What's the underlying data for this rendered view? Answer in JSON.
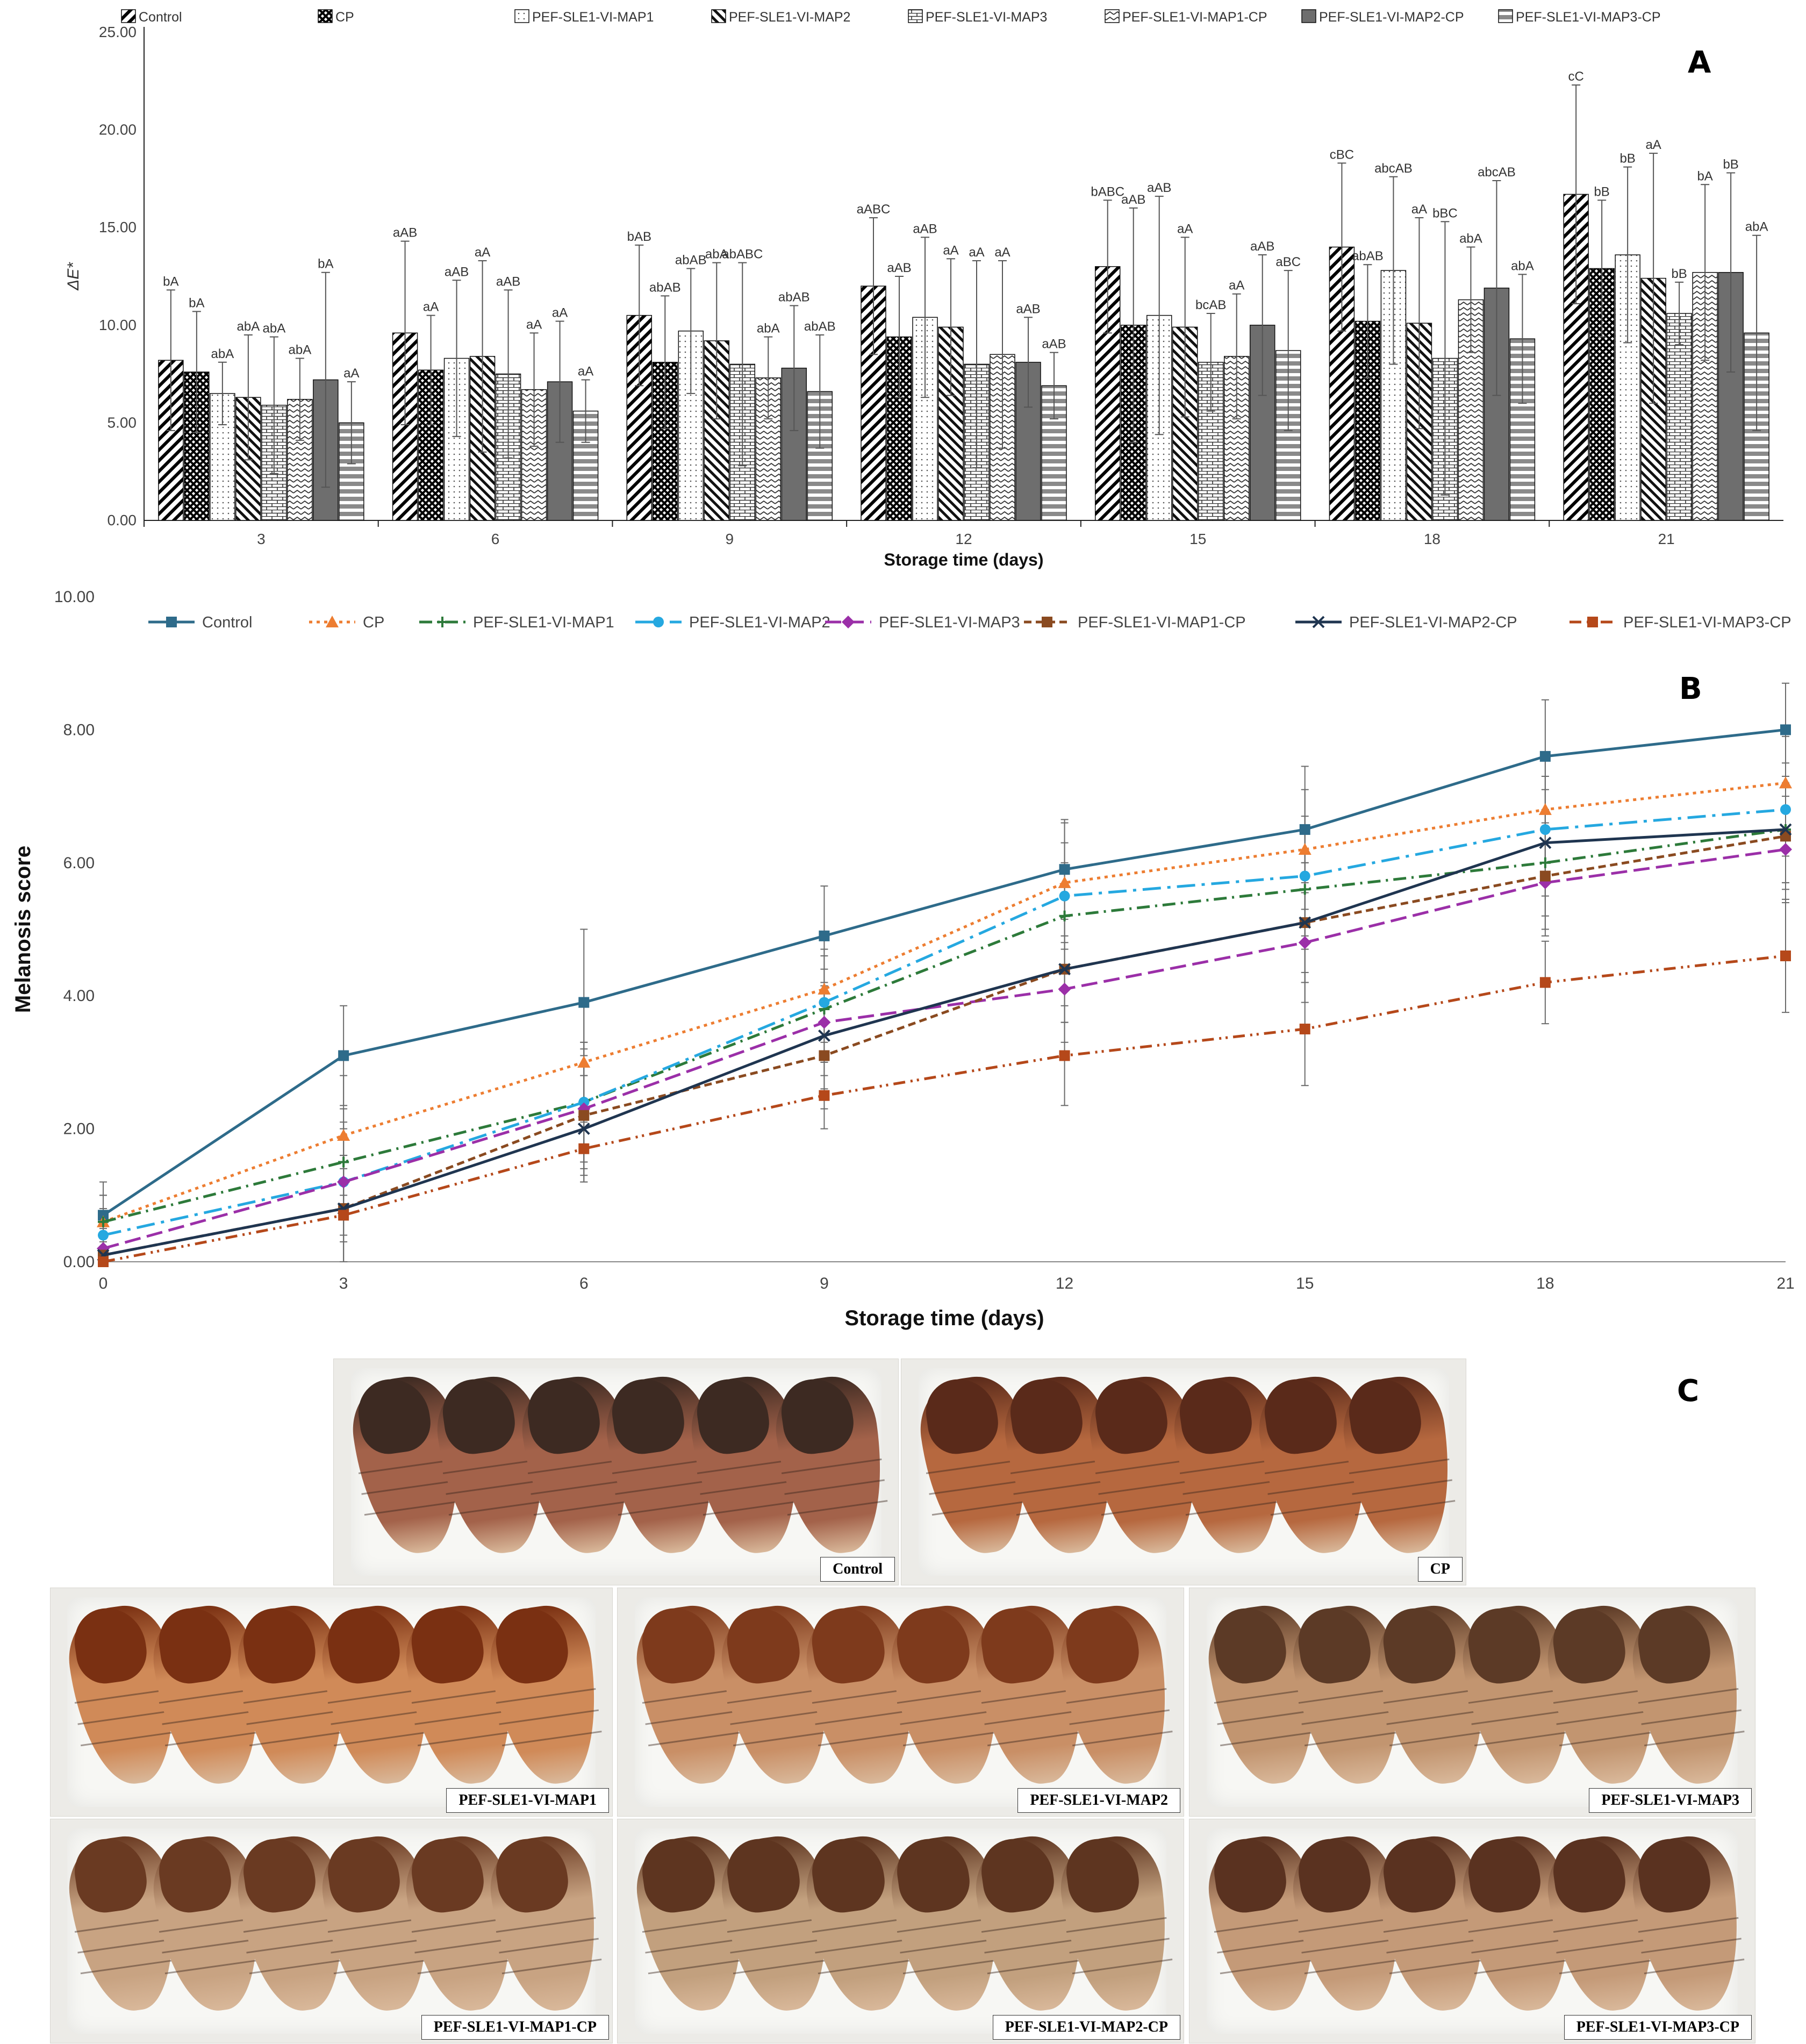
{
  "panel_labels": {
    "a": "A",
    "b": "B",
    "c": "C"
  },
  "chart_data": [
    {
      "type": "bar",
      "panel": "A",
      "title": "",
      "xlabel": "Storage time (days)",
      "ylabel": "ΔE*",
      "ylim": [
        0,
        25
      ],
      "yticks": [
        "0.00",
        "5.00",
        "10.00",
        "15.00",
        "20.00",
        "25.00"
      ],
      "categories": [
        "3",
        "6",
        "9",
        "12",
        "15",
        "18",
        "21"
      ],
      "legend_position": "top",
      "series": [
        {
          "name": "Control",
          "values": [
            8.2,
            9.6,
            10.5,
            12.0,
            13.0,
            14.0,
            16.7
          ],
          "errors": [
            3.6,
            4.7,
            3.6,
            3.5,
            3.4,
            4.3,
            5.6
          ],
          "letters": [
            "bA",
            "aAB",
            "bAB",
            "aABC",
            "bABC",
            "cBC",
            "cC"
          ]
        },
        {
          "name": "CP",
          "values": [
            7.6,
            7.7,
            8.1,
            9.4,
            10.0,
            10.2,
            12.9
          ],
          "errors": [
            3.1,
            2.8,
            3.4,
            3.1,
            6.0,
            2.9,
            3.5
          ],
          "letters": [
            "bA",
            "aA",
            "abAB",
            "aAB",
            "aAB",
            "abAB",
            "bB"
          ]
        },
        {
          "name": "PEF-SLE1-VI-MAP1",
          "values": [
            6.5,
            8.3,
            9.7,
            10.4,
            10.5,
            12.8,
            13.6
          ],
          "errors": [
            1.6,
            4.0,
            3.2,
            4.1,
            6.1,
            4.8,
            4.5
          ],
          "letters": [
            "abA",
            "aAB",
            "abAB",
            "aAB",
            "aAB",
            "abcAB",
            "bB"
          ]
        },
        {
          "name": "PEF-SLE1-VI-MAP2",
          "values": [
            6.3,
            8.4,
            9.2,
            9.9,
            9.9,
            10.1,
            12.4
          ],
          "errors": [
            3.2,
            4.9,
            4.0,
            3.5,
            4.6,
            5.4,
            6.4
          ],
          "letters": [
            "abA",
            "aA",
            "abA",
            "aA",
            "aA",
            "aA",
            "aA"
          ]
        },
        {
          "name": "PEF-SLE1-VI-MAP3",
          "values": [
            5.9,
            7.5,
            8.0,
            8.0,
            8.1,
            8.3,
            10.6
          ],
          "errors": [
            3.5,
            4.3,
            5.2,
            5.3,
            2.5,
            7.0,
            1.6
          ],
          "letters": [
            "abA",
            "aAB",
            "abABC",
            "aA",
            "bcAB",
            "bBC",
            "bB"
          ]
        },
        {
          "name": "PEF-SLE1-VI-MAP1-CP",
          "values": [
            6.2,
            6.7,
            7.3,
            8.5,
            8.4,
            11.3,
            12.7
          ],
          "errors": [
            2.1,
            2.9,
            2.1,
            4.8,
            3.2,
            2.7,
            4.5
          ],
          "letters": [
            "abA",
            "aA",
            "abA",
            "aA",
            "aA",
            "abA",
            "bA"
          ]
        },
        {
          "name": "PEF-SLE1-VI-MAP2-CP",
          "values": [
            7.2,
            7.1,
            7.8,
            8.1,
            10.0,
            11.9,
            12.7
          ],
          "errors": [
            5.5,
            3.1,
            3.2,
            2.3,
            3.6,
            5.5,
            5.1
          ],
          "letters": [
            "bA",
            "aA",
            "abAB",
            "aAB",
            "aAB",
            "abcAB",
            "bB"
          ]
        },
        {
          "name": "PEF-SLE1-VI-MAP3-CP",
          "values": [
            5.0,
            5.6,
            6.6,
            6.9,
            8.7,
            9.3,
            9.6
          ],
          "errors": [
            2.1,
            1.6,
            2.9,
            1.7,
            4.1,
            3.3,
            5.0
          ],
          "letters": [
            "aA",
            "aA",
            "abAB",
            "aAB",
            "aBC",
            "abA",
            "abA"
          ]
        }
      ]
    },
    {
      "type": "line",
      "panel": "B",
      "title": "",
      "xlabel": "Storage time (days)",
      "ylabel": "Melanosis score",
      "ylim": [
        0,
        10
      ],
      "xlim": [
        0,
        21
      ],
      "x": [
        0,
        3,
        6,
        9,
        12,
        15,
        18,
        21
      ],
      "xticks": [
        "0",
        "3",
        "6",
        "9",
        "12",
        "15",
        "18",
        "21"
      ],
      "yticks": [
        "0.00",
        "2.00",
        "4.00",
        "6.00",
        "8.00",
        "10.00"
      ],
      "legend_position": "top",
      "series": [
        {
          "name": "Control",
          "values": [
            0.7,
            3.1,
            3.9,
            4.9,
            5.9,
            6.5,
            7.6,
            8.0
          ],
          "errors": [
            0.5,
            0.75,
            1.1,
            0.75,
            0.75,
            0.95,
            0.85,
            0.7
          ],
          "color": "#2e6b8a",
          "dash": "",
          "marker": "square"
        },
        {
          "name": "CP",
          "values": [
            0.6,
            1.9,
            3.0,
            4.1,
            5.7,
            6.2,
            6.8,
            7.2
          ],
          "errors": [
            0.4,
            0.9,
            0.9,
            0.8,
            0.9,
            0.9,
            0.8,
            0.7
          ],
          "color": "#ed7d31",
          "dash": "6 8",
          "marker": "triangle"
        },
        {
          "name": "PEF-SLE1-VI-MAP1",
          "values": [
            0.6,
            1.5,
            2.4,
            3.8,
            5.2,
            5.6,
            6.0,
            6.5
          ],
          "errors": [
            0.4,
            0.8,
            0.9,
            0.8,
            0.8,
            0.9,
            0.8,
            0.8
          ],
          "color": "#2d7a3a",
          "dash": "24 10 4 10",
          "marker": "plus"
        },
        {
          "name": "PEF-SLE1-VI-MAP2",
          "values": [
            0.4,
            1.2,
            2.4,
            3.9,
            5.5,
            5.8,
            6.5,
            6.8
          ],
          "errors": [
            0.4,
            0.8,
            0.9,
            0.8,
            0.8,
            0.9,
            0.8,
            0.7
          ],
          "color": "#25a8e0",
          "dash": "34 12 6 12",
          "marker": "circle"
        },
        {
          "name": "PEF-SLE1-VI-MAP3",
          "values": [
            0.2,
            1.2,
            2.3,
            3.6,
            4.1,
            4.8,
            5.7,
            6.2
          ],
          "errors": [
            0.3,
            0.9,
            0.9,
            0.8,
            0.8,
            0.9,
            0.8,
            0.8
          ],
          "color": "#9b2fa8",
          "dash": "30 12",
          "marker": "diamond"
        },
        {
          "name": "PEF-SLE1-VI-MAP1-CP",
          "values": [
            0.1,
            0.8,
            2.2,
            3.1,
            4.4,
            5.1,
            5.8,
            6.4
          ],
          "errors": [
            0.3,
            0.8,
            0.9,
            0.8,
            0.8,
            0.9,
            0.8,
            0.8
          ],
          "color": "#8a4a20",
          "dash": "14 8",
          "marker": "square"
        },
        {
          "name": "PEF-SLE1-VI-MAP2-CP",
          "values": [
            0.1,
            0.8,
            2.0,
            3.4,
            4.4,
            5.1,
            6.3,
            6.5
          ],
          "errors": [
            0.3,
            0.8,
            0.8,
            0.8,
            0.8,
            0.9,
            0.8,
            0.8
          ],
          "color": "#1f3550",
          "dash": "",
          "marker": "x"
        },
        {
          "name": "PEF-SLE1-VI-MAP3-CP",
          "values": [
            0.0,
            0.7,
            1.7,
            2.5,
            3.1,
            3.5,
            4.2,
            4.6
          ],
          "errors": [
            0.3,
            0.7,
            0.5,
            0.5,
            0.75,
            0.85,
            0.62,
            0.85
          ],
          "color": "#b5481a",
          "dash": "22 10 4 8 4 10",
          "marker": "square"
        }
      ]
    }
  ],
  "photos": [
    {
      "label": "Control",
      "tone": "#a3624a",
      "head": "#3d2a22",
      "count": 6
    },
    {
      "label": "CP",
      "tone": "#b6683f",
      "head": "#5a2a1a",
      "count": 6
    },
    {
      "label": "PEF-SLE1-VI-MAP1",
      "tone": "#d08a58",
      "head": "#7a3012",
      "count": 6
    },
    {
      "label": "PEF-SLE1-VI-MAP2",
      "tone": "#c98f66",
      "head": "#7e3a1c",
      "count": 6
    },
    {
      "label": "PEF-SLE1-VI-MAP3",
      "tone": "#c29570",
      "head": "#5c3a26",
      "count": 6
    },
    {
      "label": "PEF-SLE1-VI-MAP1-CP",
      "tone": "#c8a382",
      "head": "#6a3a22",
      "count": 6
    },
    {
      "label": "PEF-SLE1-VI-MAP2-CP",
      "tone": "#c2a07e",
      "head": "#5e3520",
      "count": 6
    },
    {
      "label": "PEF-SLE1-VI-MAP3-CP",
      "tone": "#c49a78",
      "head": "#5a3220",
      "count": 6
    }
  ]
}
